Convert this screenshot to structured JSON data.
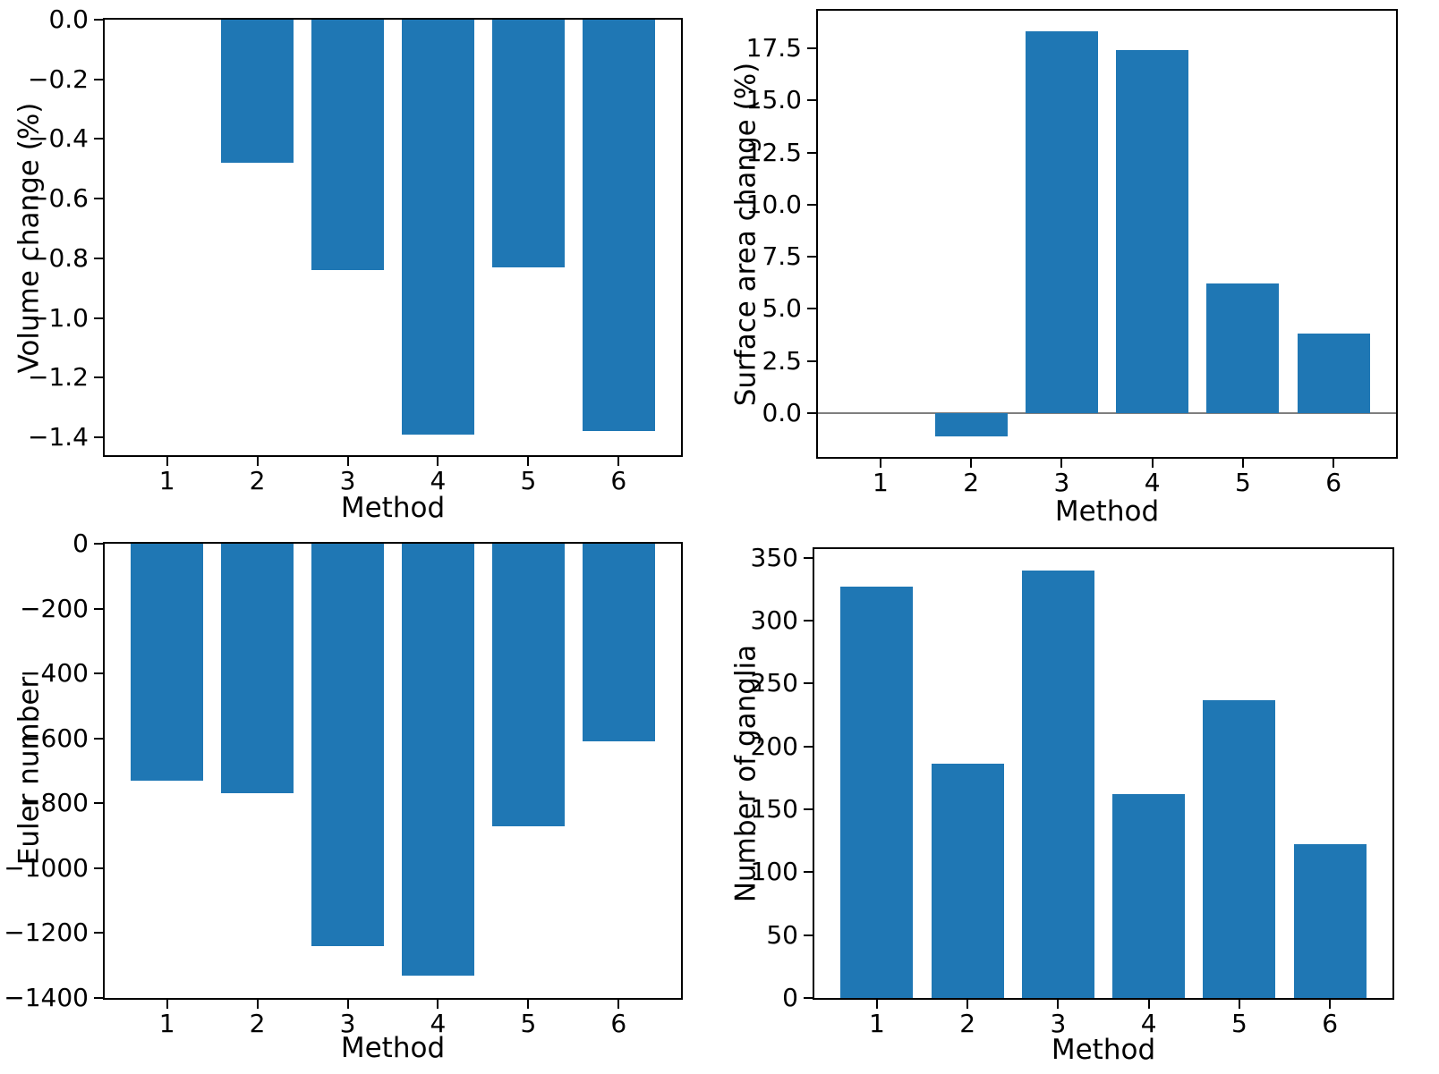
{
  "figure": {
    "background": "#ffffff",
    "bar_color": "#1f77b4",
    "spine_color": "#000000",
    "zero_line_color": "#7f7f7f",
    "text_color": "#000000"
  },
  "chart_data": [
    {
      "id": "volume-change",
      "type": "bar",
      "title": "",
      "xlabel": "Method",
      "ylabel": "Volume change (%)",
      "categories": [
        "1",
        "2",
        "3",
        "4",
        "5",
        "6"
      ],
      "x": [
        1,
        2,
        3,
        4,
        5,
        6
      ],
      "values": [
        0,
        -0.48,
        -0.84,
        -1.39,
        -0.83,
        -1.38
      ],
      "bar_width": 0.8,
      "xlim": [
        0.31,
        6.69
      ],
      "ylim": [
        -1.46,
        0
      ],
      "yticks": [
        0.0,
        -0.2,
        -0.4,
        -0.6,
        -0.8,
        -1.0,
        -1.2,
        -1.4
      ],
      "ytick_labels": [
        "0.0",
        "−0.2",
        "−0.4",
        "−0.6",
        "−0.8",
        "−1.0",
        "−1.2",
        "−1.4"
      ],
      "grid": false,
      "legend": null,
      "zero_line": false
    },
    {
      "id": "surface-area-change",
      "type": "bar",
      "title": "",
      "xlabel": "Method",
      "ylabel": "Surface area change (%)",
      "categories": [
        "1",
        "2",
        "3",
        "4",
        "5",
        "6"
      ],
      "x": [
        1,
        2,
        3,
        4,
        5,
        6
      ],
      "values": [
        0,
        -1.1,
        18.3,
        17.4,
        6.2,
        3.8
      ],
      "bar_width": 0.8,
      "xlim": [
        0.31,
        6.69
      ],
      "ylim": [
        -2.1,
        19.3
      ],
      "yticks": [
        17.5,
        15.0,
        12.5,
        10.0,
        7.5,
        5.0,
        2.5,
        0.0
      ],
      "ytick_labels": [
        "17.5",
        "15.0",
        "12.5",
        "10.0",
        "7.5",
        "5.0",
        "2.5",
        "0.0"
      ],
      "grid": false,
      "legend": null,
      "zero_line": true
    },
    {
      "id": "euler-number",
      "type": "bar",
      "title": "",
      "xlabel": "Method",
      "ylabel": "Euler number",
      "categories": [
        "1",
        "2",
        "3",
        "4",
        "5",
        "6"
      ],
      "x": [
        1,
        2,
        3,
        4,
        5,
        6
      ],
      "values": [
        -730,
        -770,
        -1240,
        -1330,
        -870,
        -610
      ],
      "bar_width": 0.8,
      "xlim": [
        0.31,
        6.69
      ],
      "ylim": [
        -1400,
        0
      ],
      "yticks": [
        0,
        -200,
        -400,
        -600,
        -800,
        -1000,
        -1200,
        -1400
      ],
      "ytick_labels": [
        "0",
        "−200",
        "−400",
        "−600",
        "−800",
        "−1000",
        "−1200",
        "−1400"
      ],
      "grid": false,
      "legend": null,
      "zero_line": false
    },
    {
      "id": "number-of-ganglia",
      "type": "bar",
      "title": "",
      "xlabel": "Method",
      "ylabel": "Number of ganglia",
      "categories": [
        "1",
        "2",
        "3",
        "4",
        "5",
        "6"
      ],
      "x": [
        1,
        2,
        3,
        4,
        5,
        6
      ],
      "values": [
        327,
        186,
        340,
        162,
        237,
        122
      ],
      "bar_width": 0.8,
      "xlim": [
        0.31,
        6.69
      ],
      "ylim": [
        0,
        357
      ],
      "yticks": [
        350,
        300,
        250,
        200,
        150,
        100,
        50,
        0
      ],
      "ytick_labels": [
        "350",
        "300",
        "250",
        "200",
        "150",
        "100",
        "50",
        "0"
      ],
      "grid": false,
      "legend": null,
      "zero_line": false
    }
  ]
}
